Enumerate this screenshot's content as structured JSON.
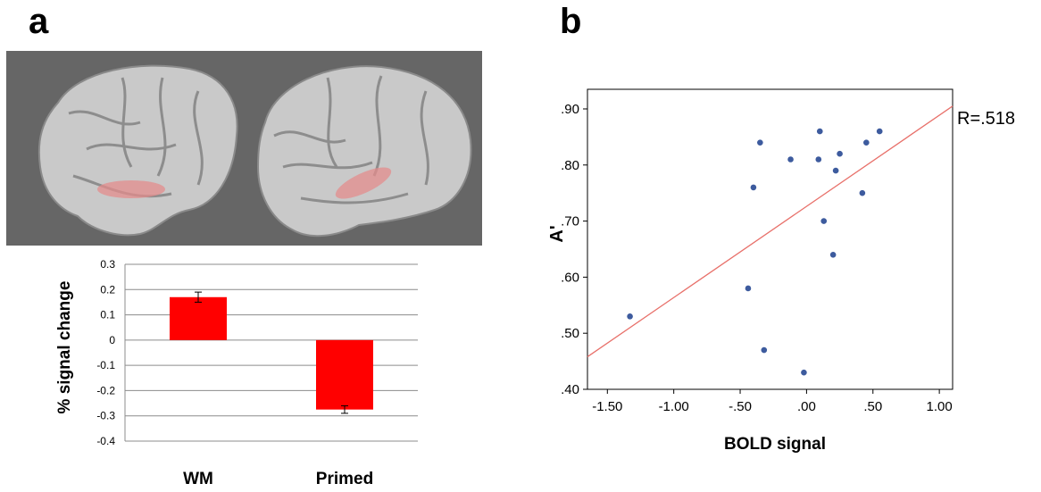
{
  "panels": {
    "a_label": "a",
    "b_label": "b"
  },
  "colors": {
    "bar": "#ff0000",
    "brain_bg": "#666666",
    "brain": "#c9c9c9",
    "activation": "#e38c8c",
    "points": "#3d5b9e",
    "fit_line": "#e8706a"
  },
  "chart_data": [
    {
      "type": "bar",
      "ylabel": "% signal change",
      "categories": [
        "WM",
        "Primed"
      ],
      "values": [
        0.17,
        -0.275
      ],
      "error": [
        0.02,
        0.015
      ],
      "ylim": [
        -0.4,
        0.3
      ],
      "yticks": [
        0.3,
        0.2,
        0.1,
        0,
        -0.1,
        -0.2,
        -0.3,
        -0.4
      ],
      "ytick_labels": [
        "0.3",
        "0.2",
        "0.1",
        "0",
        "-0.1",
        "-0.2",
        "-0.3",
        "-0.4"
      ],
      "grid": true
    },
    {
      "type": "scatter",
      "xlabel": "BOLD signal",
      "ylabel": "A'",
      "annotation": "R=.518",
      "xlim": [
        -1.65,
        1.1
      ],
      "ylim": [
        0.4,
        0.935
      ],
      "xticks": [
        -1.5,
        -1.0,
        -0.5,
        0,
        0.5,
        1.0
      ],
      "xtick_labels": [
        "-1.50",
        "-1.00",
        "-.50",
        ".00",
        ".50",
        "1.00"
      ],
      "yticks": [
        0.4,
        0.5,
        0.6,
        0.7,
        0.8,
        0.9
      ],
      "ytick_labels": [
        ".40",
        ".50",
        ".60",
        ".70",
        ".80",
        ".90"
      ],
      "points": [
        [
          -1.33,
          0.53
        ],
        [
          -0.44,
          0.58
        ],
        [
          -0.4,
          0.76
        ],
        [
          -0.35,
          0.84
        ],
        [
          -0.32,
          0.47
        ],
        [
          -0.12,
          0.81
        ],
        [
          -0.02,
          0.43
        ],
        [
          0.09,
          0.81
        ],
        [
          0.1,
          0.86
        ],
        [
          0.13,
          0.7
        ],
        [
          0.2,
          0.64
        ],
        [
          0.22,
          0.79
        ],
        [
          0.25,
          0.82
        ],
        [
          0.42,
          0.75
        ],
        [
          0.45,
          0.84
        ],
        [
          0.55,
          0.86
        ]
      ],
      "fit_line": {
        "x": [
          -1.65,
          1.1
        ],
        "y": [
          0.458,
          0.905
        ]
      }
    }
  ]
}
